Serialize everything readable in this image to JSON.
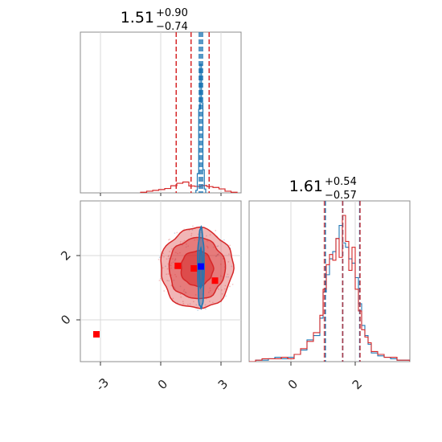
{
  "chart_data": [
    {
      "type": "histogram",
      "panel": "top-left (parameter 1 marginal)",
      "title_value": "1.51",
      "title_upper": "+0.90",
      "title_lower": "−0.74",
      "xlim": [
        -4,
        4
      ],
      "x_ticks": [
        -3,
        0,
        3
      ],
      "grid": true,
      "series": [
        {
          "color": "#d62728",
          "bin_edges": [
            -1,
            -0.7,
            -0.4,
            -0.1,
            0.2,
            0.5,
            0.8,
            1.1,
            1.4,
            1.7,
            2.0,
            2.3,
            2.6,
            2.9,
            3.2,
            3.5,
            3.8
          ],
          "heights": [
            0.3,
            0.8,
            1.2,
            1.6,
            2.1,
            3.4,
            4.6,
            5.2,
            3.3,
            3.1,
            3.5,
            3.0,
            2.6,
            1.9,
            0.8,
            0.3
          ],
          "quantiles": [
            0.77,
            1.51,
            2.41
          ]
        },
        {
          "color": "#1f77b4",
          "bin_edges": [
            1.75,
            1.82,
            1.89,
            1.96,
            2.03,
            2.1,
            2.17,
            2.24
          ],
          "heights": [
            2,
            15,
            65,
            100,
            70,
            18,
            3
          ],
          "quantiles": [
            1.92,
            2.0,
            2.08
          ]
        }
      ]
    },
    {
      "type": "histogram",
      "panel": "bottom-right (parameter 2 marginal)",
      "title_value": "1.61",
      "title_upper": "+0.54",
      "title_lower": "−0.57",
      "xlim": [
        -1.3,
        3.7
      ],
      "x_ticks": [
        0,
        2
      ],
      "grid": true,
      "series": [
        {
          "color": "#d62728",
          "bin_edges": [
            -1.3,
            -1.1,
            -0.9,
            -0.7,
            -0.5,
            -0.3,
            -0.1,
            0.1,
            0.3,
            0.5,
            0.7,
            0.9,
            1.0,
            1.1,
            1.2,
            1.3,
            1.4,
            1.5,
            1.6,
            1.7,
            1.8,
            1.9,
            2.0,
            2.1,
            2.2,
            2.3,
            2.4,
            2.5,
            2.7,
            2.9,
            3.1,
            3.3,
            3.5,
            3.7
          ],
          "heights": [
            0,
            1,
            2,
            2,
            2,
            3,
            2,
            5,
            9,
            14,
            20,
            32,
            50,
            67,
            74,
            70,
            85,
            72,
            101,
            83,
            63,
            79,
            50,
            35,
            22,
            17,
            13,
            7,
            5,
            3,
            3,
            1,
            1
          ],
          "quantiles": [
            1.04,
            1.61,
            2.15
          ]
        },
        {
          "color": "#1f77b4",
          "bin_edges": [
            -1.3,
            -1.1,
            -0.9,
            -0.7,
            -0.5,
            -0.3,
            -0.1,
            0.1,
            0.3,
            0.5,
            0.7,
            0.9,
            1.0,
            1.1,
            1.2,
            1.3,
            1.4,
            1.5,
            1.6,
            1.7,
            1.8,
            1.9,
            2.0,
            2.1,
            2.2,
            2.3,
            2.4,
            2.5,
            2.7,
            2.9,
            3.1,
            3.3,
            3.5,
            3.7
          ],
          "heights": [
            0,
            1,
            1,
            2,
            3,
            2,
            3,
            5,
            8,
            15,
            18,
            30,
            48,
            60,
            71,
            76,
            85,
            94,
            82,
            79,
            71,
            68,
            58,
            40,
            25,
            18,
            12,
            6,
            4,
            3,
            2,
            1,
            1
          ],
          "quantiles": [
            1.07,
            1.61,
            2.14
          ]
        }
      ]
    },
    {
      "type": "contour_scatter",
      "panel": "bottom-left (parameter 2 vs parameter 1)",
      "xlim": [
        -4,
        4
      ],
      "ylim": [
        -1.3,
        3.7
      ],
      "x_ticks": [
        -3,
        0,
        3
      ],
      "y_ticks": [
        0,
        2
      ],
      "grid": true,
      "red_contour": {
        "color": "#d62728",
        "center": [
          1.8,
          1.6
        ],
        "levels": [
          {
            "rx": 0.8,
            "ry": 0.55
          },
          {
            "rx": 1.4,
            "ry": 0.95
          },
          {
            "rx": 1.8,
            "ry": 1.25
          }
        ]
      },
      "blue_contour": {
        "color": "#1f77b4",
        "center": [
          2.0,
          1.6
        ],
        "levels": [
          {
            "rx": 0.08,
            "ry": 0.6
          },
          {
            "rx": 0.16,
            "ry": 1.25
          }
        ]
      },
      "red_markers": [
        {
          "x": -3.2,
          "y": -0.45
        },
        {
          "x": 0.85,
          "y": 1.68
        },
        {
          "x": 1.65,
          "y": 1.6
        },
        {
          "x": 2.7,
          "y": 1.22
        }
      ],
      "blue_markers": [
        {
          "x": 2.0,
          "y": 1.66
        }
      ]
    }
  ]
}
